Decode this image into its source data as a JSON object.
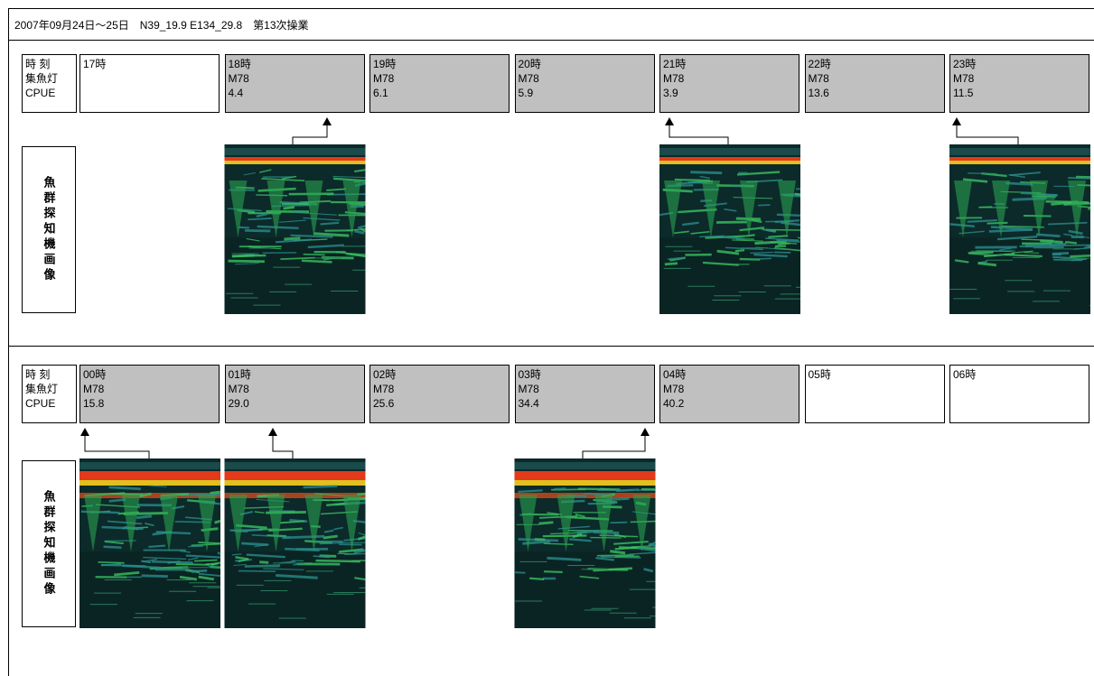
{
  "header": {
    "title": "2007年09月24日～25日　N39_19.9 E134_29.8　第13次操業"
  },
  "sections": [
    {
      "row_labels": [
        "時 刻",
        "集魚灯",
        "CPUE"
      ],
      "image_label": "魚群探知機画像",
      "hours": [
        {
          "hour": "17時"
        },
        {
          "hour": "18時",
          "light": "M78",
          "cpue": "4.4"
        },
        {
          "hour": "19時",
          "light": "M78",
          "cpue": "6.1"
        },
        {
          "hour": "20時",
          "light": "M78",
          "cpue": "5.9"
        },
        {
          "hour": "21時",
          "light": "M78",
          "cpue": "3.9"
        },
        {
          "hour": "22時",
          "light": "M78",
          "cpue": "13.6"
        },
        {
          "hour": "23時",
          "light": "M78",
          "cpue": "11.5"
        }
      ]
    },
    {
      "row_labels": [
        "時 刻",
        "集魚灯",
        "CPUE"
      ],
      "image_label": "魚群探知機画像",
      "hours": [
        {
          "hour": "00時",
          "light": "M78",
          "cpue": "15.8"
        },
        {
          "hour": "01時",
          "light": "M78",
          "cpue": "29.0"
        },
        {
          "hour": "02時",
          "light": "M78",
          "cpue": "25.6"
        },
        {
          "hour": "03時",
          "light": "M78",
          "cpue": "34.4"
        },
        {
          "hour": "04時",
          "light": "M78",
          "cpue": "40.2"
        },
        {
          "hour": "05時"
        },
        {
          "hour": "06時"
        }
      ]
    }
  ]
}
